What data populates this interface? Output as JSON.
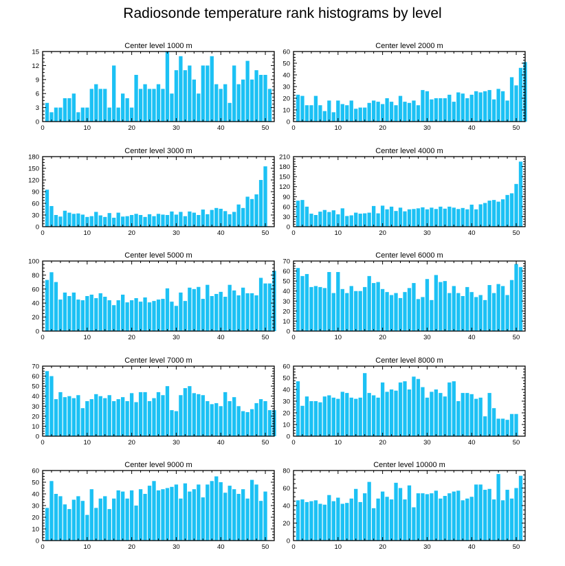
{
  "title": "Radiosonde temperature rank histograms by level",
  "colors": {
    "bar": "#1cc1f4",
    "axis": "#000000"
  },
  "chart_data": [
    {
      "type": "bar",
      "title": "Center level 1000 m",
      "xlim": [
        0,
        52
      ],
      "ylim": [
        0,
        15
      ],
      "x_ticks": [
        0,
        10,
        20,
        30,
        40,
        50
      ],
      "y_ticks": [
        0,
        3,
        6,
        9,
        12,
        15
      ],
      "values": [
        4,
        2,
        3,
        3,
        5,
        5,
        6,
        2,
        3,
        3,
        7,
        8,
        7,
        7,
        3,
        12,
        3,
        6,
        5,
        3,
        10,
        7,
        8,
        7,
        7,
        8,
        7,
        15,
        6,
        11,
        14,
        11,
        12,
        9,
        6,
        12,
        12,
        14,
        8,
        7,
        8,
        4,
        12,
        8,
        9,
        13,
        9,
        11,
        10,
        10,
        7
      ]
    },
    {
      "type": "bar",
      "title": "Center level 2000 m",
      "xlim": [
        0,
        52
      ],
      "ylim": [
        0,
        60
      ],
      "x_ticks": [
        0,
        10,
        20,
        30,
        40,
        50
      ],
      "y_ticks": [
        0,
        10,
        20,
        30,
        40,
        50,
        60
      ],
      "values": [
        23,
        22,
        14,
        14,
        22,
        14,
        9,
        18,
        8,
        18,
        15,
        14,
        18,
        11,
        12,
        12,
        16,
        18,
        17,
        15,
        20,
        17,
        14,
        22,
        17,
        16,
        18,
        14,
        27,
        26,
        19,
        20,
        20,
        20,
        23,
        17,
        25,
        24,
        20,
        23,
        26,
        25,
        26,
        27,
        19,
        28,
        26,
        18,
        38,
        31,
        46,
        51
      ]
    },
    {
      "type": "bar",
      "title": "Center level 3000 m",
      "xlim": [
        0,
        52
      ],
      "ylim": [
        0,
        180
      ],
      "x_ticks": [
        0,
        10,
        20,
        30,
        40,
        50
      ],
      "y_ticks": [
        0,
        30,
        60,
        90,
        120,
        150,
        180
      ],
      "values": [
        95,
        53,
        30,
        26,
        41,
        36,
        33,
        34,
        31,
        25,
        27,
        38,
        29,
        25,
        35,
        23,
        36,
        26,
        27,
        30,
        33,
        30,
        25,
        32,
        27,
        33,
        31,
        30,
        39,
        31,
        38,
        27,
        39,
        36,
        30,
        44,
        32,
        43,
        48,
        46,
        40,
        32,
        38,
        57,
        48,
        77,
        71,
        83,
        120,
        155
      ]
    },
    {
      "type": "bar",
      "title": "Center level 4000 m",
      "xlim": [
        0,
        52
      ],
      "ylim": [
        0,
        210
      ],
      "x_ticks": [
        0,
        10,
        20,
        30,
        40,
        50
      ],
      "y_ticks": [
        0,
        30,
        60,
        90,
        120,
        150,
        180,
        210
      ],
      "values": [
        78,
        80,
        60,
        39,
        35,
        45,
        50,
        44,
        49,
        37,
        55,
        32,
        34,
        42,
        39,
        40,
        42,
        62,
        40,
        63,
        52,
        60,
        47,
        57,
        46,
        52,
        53,
        55,
        58,
        52,
        57,
        53,
        60,
        54,
        60,
        57,
        53,
        56,
        52,
        66,
        52,
        67,
        71,
        78,
        80,
        75,
        82,
        95,
        100,
        128,
        195
      ]
    },
    {
      "type": "bar",
      "title": "Center level 5000 m",
      "xlim": [
        0,
        52
      ],
      "ylim": [
        0,
        100
      ],
      "x_ticks": [
        0,
        10,
        20,
        30,
        40,
        50
      ],
      "y_ticks": [
        0,
        20,
        40,
        60,
        80,
        100
      ],
      "values": [
        73,
        84,
        70,
        45,
        55,
        50,
        55,
        45,
        44,
        50,
        52,
        47,
        54,
        49,
        44,
        37,
        44,
        52,
        41,
        44,
        47,
        42,
        48,
        41,
        43,
        45,
        46,
        61,
        42,
        36,
        55,
        43,
        62,
        60,
        63,
        46,
        66,
        50,
        53,
        56,
        49,
        66,
        58,
        51,
        62,
        54,
        54,
        51,
        76,
        68,
        68,
        86
      ]
    },
    {
      "type": "bar",
      "title": "Center level 6000 m",
      "xlim": [
        0,
        52
      ],
      "ylim": [
        0,
        70
      ],
      "x_ticks": [
        0,
        10,
        20,
        30,
        40,
        50
      ],
      "y_ticks": [
        0,
        10,
        20,
        30,
        40,
        50,
        60,
        70
      ],
      "values": [
        63,
        55,
        57,
        44,
        45,
        44,
        43,
        59,
        38,
        59,
        42,
        38,
        45,
        40,
        40,
        44,
        55,
        48,
        49,
        42,
        39,
        36,
        38,
        33,
        39,
        43,
        48,
        32,
        34,
        52,
        31,
        56,
        49,
        50,
        38,
        45,
        38,
        35,
        44,
        39,
        34,
        36,
        31,
        46,
        38,
        47,
        45,
        36,
        51,
        67,
        64
      ]
    },
    {
      "type": "bar",
      "title": "Center level 7000 m",
      "xlim": [
        0,
        52
      ],
      "ylim": [
        0,
        70
      ],
      "x_ticks": [
        0,
        10,
        20,
        30,
        40,
        50
      ],
      "y_ticks": [
        0,
        10,
        20,
        30,
        40,
        50,
        60,
        70
      ],
      "values": [
        65,
        60,
        37,
        44,
        39,
        40,
        38,
        41,
        28,
        35,
        37,
        42,
        40,
        38,
        41,
        35,
        37,
        39,
        35,
        43,
        34,
        44,
        44,
        35,
        38,
        44,
        41,
        50,
        26,
        25,
        41,
        48,
        50,
        43,
        42,
        41,
        35,
        32,
        33,
        30,
        44,
        35,
        39,
        30,
        25,
        24,
        27,
        33,
        37,
        35,
        26,
        26
      ]
    },
    {
      "type": "bar",
      "title": "Center level 8000 m",
      "xlim": [
        0,
        52
      ],
      "ylim": [
        0,
        60
      ],
      "x_ticks": [
        0,
        10,
        20,
        30,
        40,
        50
      ],
      "y_ticks": [
        0,
        10,
        20,
        30,
        40,
        50,
        60
      ],
      "values": [
        47,
        26,
        34,
        30,
        30,
        29,
        34,
        35,
        33,
        32,
        38,
        37,
        33,
        32,
        33,
        54,
        37,
        35,
        33,
        46,
        38,
        40,
        39,
        46,
        47,
        40,
        51,
        49,
        42,
        33,
        38,
        40,
        37,
        34,
        46,
        47,
        30,
        37,
        37,
        36,
        32,
        33,
        17,
        37,
        24,
        15,
        15,
        14,
        19,
        19
      ]
    },
    {
      "type": "bar",
      "title": "Center level 9000 m",
      "xlim": [
        0,
        52
      ],
      "ylim": [
        0,
        60
      ],
      "x_ticks": [
        0,
        10,
        20,
        30,
        40,
        50
      ],
      "y_ticks": [
        0,
        10,
        20,
        30,
        40,
        50,
        60
      ],
      "values": [
        28,
        51,
        40,
        38,
        31,
        27,
        35,
        38,
        34,
        22,
        44,
        28,
        36,
        38,
        27,
        36,
        43,
        42,
        36,
        43,
        30,
        44,
        40,
        47,
        51,
        43,
        44,
        45,
        46,
        48,
        36,
        49,
        42,
        44,
        48,
        37,
        48,
        51,
        55,
        50,
        41,
        47,
        44,
        40,
        44,
        36,
        52,
        48,
        34,
        42
      ]
    },
    {
      "type": "bar",
      "title": "Center level 10000 m",
      "xlim": [
        0,
        52
      ],
      "ylim": [
        0,
        80
      ],
      "x_ticks": [
        0,
        10,
        20,
        30,
        40,
        50
      ],
      "y_ticks": [
        0,
        20,
        40,
        60,
        80
      ],
      "values": [
        46,
        47,
        44,
        45,
        46,
        42,
        41,
        52,
        45,
        49,
        42,
        43,
        48,
        59,
        44,
        54,
        67,
        37,
        48,
        56,
        50,
        47,
        66,
        60,
        47,
        63,
        38,
        54,
        54,
        53,
        54,
        57,
        48,
        51,
        54,
        56,
        57,
        46,
        48,
        50,
        64,
        64,
        58,
        59,
        47,
        76,
        46,
        58,
        48,
        60,
        74
      ]
    }
  ]
}
